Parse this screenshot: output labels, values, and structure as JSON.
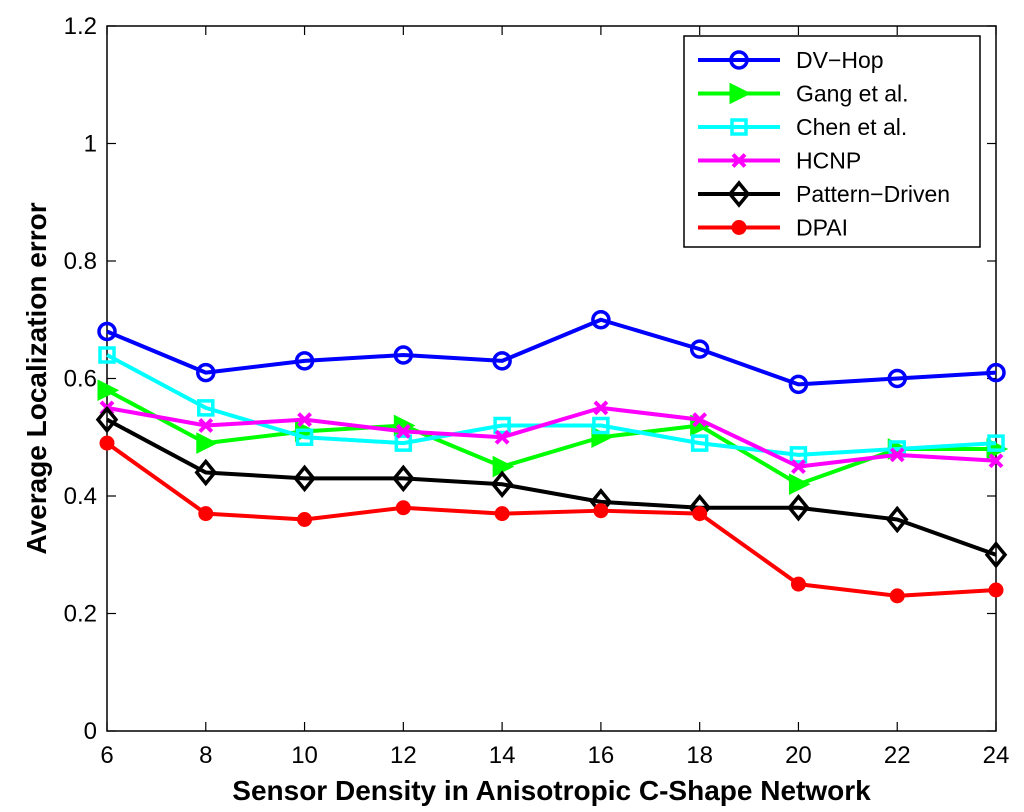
{
  "chart_data": {
    "type": "line",
    "title": "",
    "xlabel": "Sensor Density in Anisotropic C-Shape Network",
    "ylabel": "Average Localization error",
    "xlim": [
      6,
      24
    ],
    "ylim": [
      0,
      1.2
    ],
    "xticks": [
      6,
      8,
      10,
      12,
      14,
      16,
      18,
      20,
      22,
      24
    ],
    "yticks": [
      0,
      0.2,
      0.4,
      0.6,
      0.8,
      1,
      1.2
    ],
    "ytick_labels": [
      "0",
      "0.2",
      "0.4",
      "0.6",
      "0.8",
      "1",
      "1.2"
    ],
    "grid": false,
    "legend_position": "top-right",
    "x": [
      6,
      8,
      10,
      12,
      14,
      16,
      18,
      20,
      22,
      24
    ],
    "series": [
      {
        "name": "DV−Hop",
        "color": "#0000ff",
        "marker": "circle-open",
        "values": [
          0.68,
          0.61,
          0.63,
          0.64,
          0.63,
          0.7,
          0.65,
          0.59,
          0.6,
          0.61
        ]
      },
      {
        "name": "Gang et al.",
        "color": "#00ff00",
        "marker": "triangle-right",
        "values": [
          0.58,
          0.49,
          0.51,
          0.52,
          0.45,
          0.5,
          0.52,
          0.42,
          0.48,
          0.48
        ]
      },
      {
        "name": "Chen et al.",
        "color": "#00ffff",
        "marker": "square-open",
        "values": [
          0.64,
          0.55,
          0.5,
          0.49,
          0.52,
          0.52,
          0.49,
          0.47,
          0.48,
          0.49
        ]
      },
      {
        "name": "HCNP",
        "color": "#ff00ff",
        "marker": "x",
        "values": [
          0.55,
          0.52,
          0.53,
          0.51,
          0.5,
          0.55,
          0.53,
          0.45,
          0.47,
          0.46
        ]
      },
      {
        "name": "Pattern−Driven",
        "color": "#000000",
        "marker": "diamond-open",
        "values": [
          0.53,
          0.44,
          0.43,
          0.43,
          0.42,
          0.39,
          0.38,
          0.38,
          0.36,
          0.3
        ]
      },
      {
        "name": "DPAI",
        "color": "#ff0000",
        "marker": "circle-filled",
        "values": [
          0.49,
          0.37,
          0.36,
          0.38,
          0.37,
          0.375,
          0.37,
          0.25,
          0.23,
          0.24
        ]
      }
    ]
  }
}
